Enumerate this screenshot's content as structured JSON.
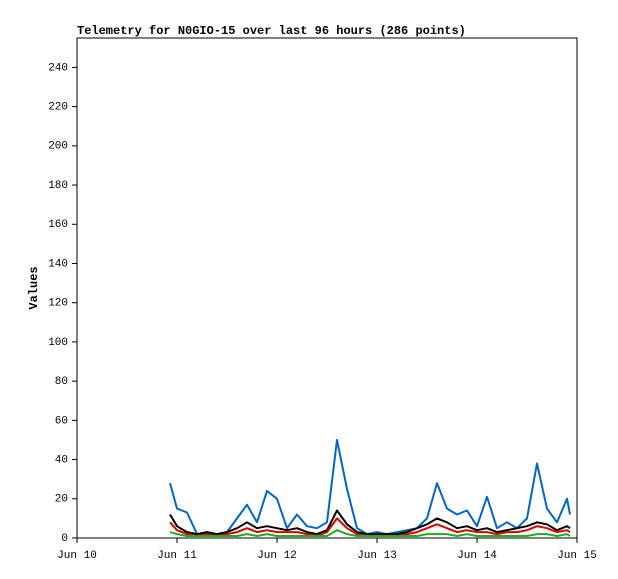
{
  "chart_data": {
    "type": "line",
    "title": "Telemetry for N0GIO-15 over last 96 hours (286 points)",
    "y_label": "Values",
    "x": [
      10.93,
      11.0,
      11.1,
      11.2,
      11.3,
      11.4,
      11.5,
      11.6,
      11.7,
      11.8,
      11.9,
      12.0,
      12.1,
      12.2,
      12.3,
      12.4,
      12.5,
      12.6,
      12.7,
      12.8,
      12.9,
      13.0,
      13.1,
      13.2,
      13.3,
      13.4,
      13.5,
      13.6,
      13.7,
      13.8,
      13.9,
      14.0,
      14.1,
      14.2,
      14.3,
      14.4,
      14.5,
      14.6,
      14.7,
      14.8,
      14.9,
      14.93
    ],
    "series": [
      {
        "color": "#0066cc",
        "values": [
          28,
          15,
          13,
          2,
          2,
          2,
          3,
          10,
          17,
          8,
          24,
          20,
          5,
          12,
          6,
          5,
          8,
          50,
          25,
          5,
          2,
          3,
          2,
          3,
          4,
          5,
          10,
          28,
          15,
          12,
          14,
          6,
          21,
          5,
          8,
          5,
          10,
          38,
          15,
          8,
          20,
          12
        ]
      },
      {
        "color": "#000000",
        "values": [
          12,
          6,
          3,
          2,
          3,
          2,
          3,
          5,
          8,
          5,
          6,
          5,
          4,
          5,
          3,
          2,
          4,
          14,
          7,
          3,
          2,
          2,
          2,
          2,
          3,
          5,
          7,
          10,
          8,
          5,
          6,
          4,
          5,
          3,
          4,
          5,
          6,
          8,
          7,
          4,
          6,
          5
        ]
      },
      {
        "color": "#dd0000",
        "values": [
          8,
          4,
          2,
          1,
          2,
          1,
          2,
          3,
          5,
          3,
          4,
          3,
          3,
          3,
          2,
          1,
          3,
          10,
          5,
          2,
          1,
          1,
          1,
          1,
          2,
          3,
          5,
          7,
          5,
          3,
          4,
          3,
          3,
          2,
          3,
          3,
          4,
          6,
          5,
          3,
          4,
          3
        ]
      },
      {
        "color": "#22aa22",
        "values": [
          3,
          2,
          1,
          1,
          1,
          1,
          1,
          1,
          2,
          1,
          2,
          1,
          1,
          1,
          1,
          1,
          1,
          4,
          2,
          1,
          1,
          1,
          1,
          1,
          1,
          1,
          2,
          2,
          2,
          1,
          2,
          1,
          1,
          1,
          1,
          1,
          1,
          2,
          2,
          1,
          2,
          1
        ]
      }
    ],
    "xlim": [
      10,
      15
    ],
    "xticks": [
      {
        "value": 10,
        "label": "Jun 10"
      },
      {
        "value": 11,
        "label": "Jun 11"
      },
      {
        "value": 12,
        "label": "Jun 12"
      },
      {
        "value": 13,
        "label": "Jun 13"
      },
      {
        "value": 14,
        "label": "Jun 14"
      },
      {
        "value": 15,
        "label": "Jun 15"
      }
    ],
    "ylim": [
      0,
      255
    ],
    "yticks": [
      0,
      20,
      40,
      60,
      80,
      100,
      120,
      140,
      160,
      180,
      200,
      220,
      240
    ]
  }
}
